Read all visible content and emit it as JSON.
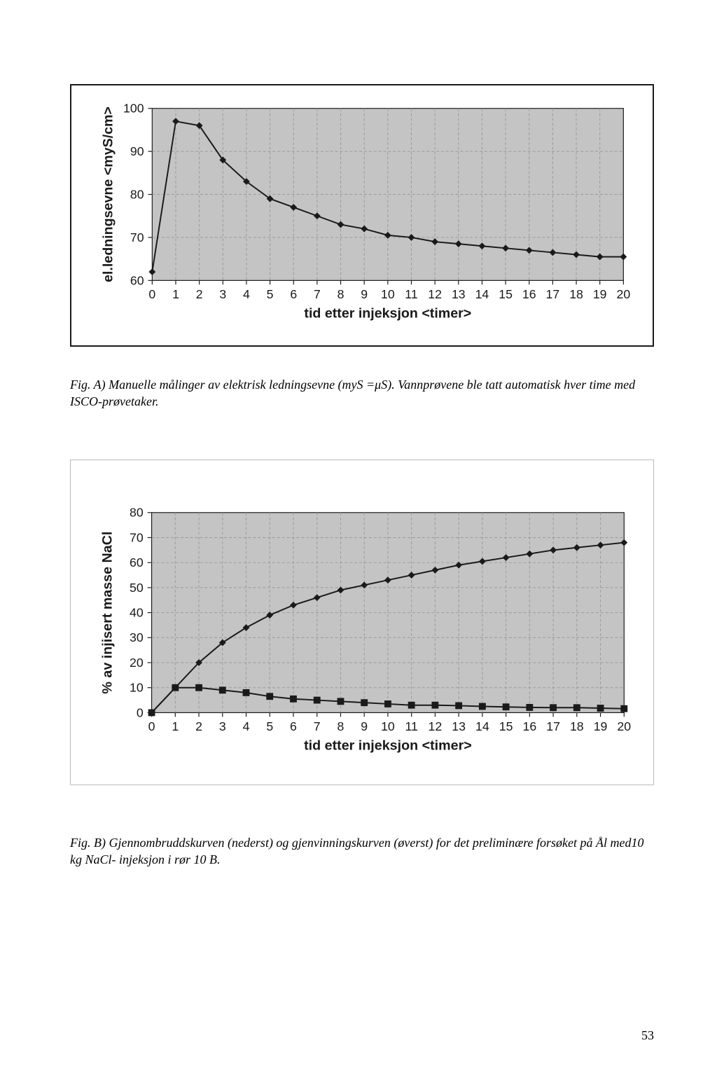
{
  "page_number": "53",
  "chart_a": {
    "type": "line",
    "x_values": [
      0,
      1,
      2,
      3,
      4,
      5,
      6,
      7,
      8,
      9,
      10,
      11,
      12,
      13,
      14,
      15,
      16,
      17,
      18,
      19,
      20
    ],
    "y_values": [
      62,
      97,
      96,
      88,
      83,
      79,
      77,
      75,
      73,
      72,
      70.5,
      70,
      69,
      68.5,
      68,
      67.5,
      67,
      66.5,
      66,
      65.5,
      65.5
    ],
    "xticks": [
      0,
      1,
      2,
      3,
      4,
      5,
      6,
      7,
      8,
      9,
      10,
      11,
      12,
      13,
      14,
      15,
      16,
      17,
      18,
      19,
      20
    ],
    "yticks": [
      60,
      70,
      80,
      90,
      100
    ],
    "xlim": [
      0,
      20
    ],
    "ylim": [
      60,
      100
    ],
    "xlabel": "tid etter injeksjon <timer>",
    "ylabel": "el.ledningsevne <myS/cm>",
    "plot_bg": "#c4c4c4",
    "grid_color": "#9a9a9a",
    "line_color": "#1a1a1a",
    "marker": "diamond",
    "marker_size": 5,
    "line_width": 2,
    "axis_fontsize": 18,
    "label_fontsize": 20,
    "label_fontweight": "bold"
  },
  "caption_a": "Fig. A) Manuelle målinger av elektrisk ledningsevne (myS =μS). Vannprøvene ble tatt automatisk hver time med ISCO-prøvetaker.",
  "chart_b": {
    "type": "line",
    "x_values": [
      0,
      1,
      2,
      3,
      4,
      5,
      6,
      7,
      8,
      9,
      10,
      11,
      12,
      13,
      14,
      15,
      16,
      17,
      18,
      19,
      20
    ],
    "series": [
      {
        "name": "recovery",
        "marker": "diamond",
        "y": [
          0,
          10,
          20,
          28,
          34,
          39,
          43,
          46,
          49,
          51,
          53,
          55,
          57,
          59,
          60.5,
          62,
          63.5,
          65,
          66,
          67,
          68
        ]
      },
      {
        "name": "breakthrough",
        "marker": "square",
        "y": [
          0,
          10,
          10,
          9,
          8,
          6.5,
          5.5,
          5,
          4.5,
          4,
          3.5,
          3,
          3,
          2.8,
          2.5,
          2.3,
          2.1,
          2,
          2,
          1.8,
          1.6
        ]
      }
    ],
    "xticks": [
      0,
      1,
      2,
      3,
      4,
      5,
      6,
      7,
      8,
      9,
      10,
      11,
      12,
      13,
      14,
      15,
      16,
      17,
      18,
      19,
      20
    ],
    "yticks": [
      0,
      10,
      20,
      30,
      40,
      50,
      60,
      70,
      80
    ],
    "xlim": [
      0,
      20
    ],
    "ylim": [
      0,
      80
    ],
    "xlabel": "tid etter injeksjon <timer>",
    "ylabel": "% av injisert masse NaCl",
    "plot_bg": "#c4c4c4",
    "grid_color": "#9a9a9a",
    "line_color": "#1a1a1a",
    "marker_size": 5,
    "line_width": 2,
    "axis_fontsize": 18,
    "label_fontsize": 20,
    "label_fontweight": "bold"
  },
  "caption_b": "Fig. B) Gjennombruddskurven (nederst) og gjenvinningskurven (øverst) for det preliminære forsøket på Ål med10 kg NaCl- injeksjon i rør 10 B."
}
